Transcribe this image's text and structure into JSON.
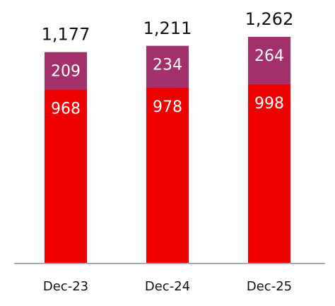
{
  "chart_data": {
    "type": "stacked-bar",
    "categories": [
      "Dec-23",
      "Dec-24",
      "Dec-25"
    ],
    "series": [
      {
        "color": "#ec0000",
        "values": [
          968,
          978,
          998
        ]
      },
      {
        "color": "#a3306a",
        "values": [
          209,
          234,
          264
        ]
      }
    ],
    "totals": {
      "values": [
        1177,
        1211,
        1262
      ],
      "value_labels": [
        "1,177",
        "1,211",
        "1,262"
      ]
    },
    "axis_color": "#aaaaaa"
  }
}
